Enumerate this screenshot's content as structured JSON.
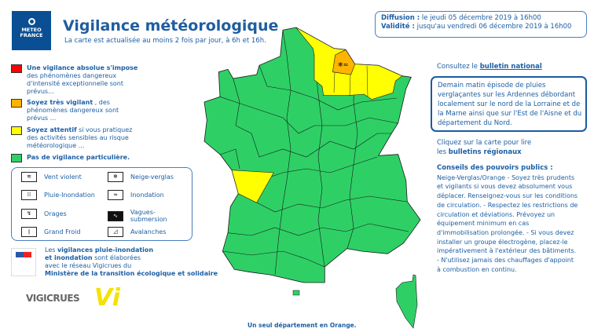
{
  "header": {
    "logo_line1": "METEO",
    "logo_line2": "FRANCE",
    "title": "Vigilance météorologique",
    "subtitle": "La carte est actualisée au moins 2 fois par jour, à 6h et 16h."
  },
  "legend": [
    {
      "color": "#ff0000",
      "bold": "Une vigilance absolue s'impose",
      "text": "des phénomènes dangereux d'intensité exceptionnelle sont prévus..."
    },
    {
      "color": "#ffb400",
      "bold": "Soyez très vigilant",
      "text": ", des phénomènes dangereux sont prévus ..."
    },
    {
      "color": "#ffff00",
      "bold": "Soyez attentif",
      "text": "si vous pratiquez des activités sensibles au risque météorologique ..."
    },
    {
      "color": "#2ed066",
      "bold": "Pas de vigilance particulière.",
      "text": ""
    }
  ],
  "risks": [
    {
      "icon": "wind-icon",
      "label": "Vent violent"
    },
    {
      "icon": "snow-ice-icon",
      "label": "Neige-verglas"
    },
    {
      "icon": "rain-flood-icon",
      "label": "Pluie-Inondation"
    },
    {
      "icon": "flood-icon",
      "label": "Inondation"
    },
    {
      "icon": "storm-icon",
      "label": "Orages"
    },
    {
      "icon": "waves-icon",
      "label": "Vagues-submersion"
    },
    {
      "icon": "thermometer-icon",
      "label": "Grand Froid"
    },
    {
      "icon": "avalanche-icon",
      "label": "Avalanches"
    }
  ],
  "vigicrues": {
    "t1": "Les ",
    "b1": "vigilances pluie-inondation",
    "t2": "et inondation",
    "t3": " sont élaborées",
    "t4": "avec le réseau Vigicrues du",
    "b2": "Ministère de la transition écologique et solidaire",
    "logo": "VIGICRUES",
    "logo2": "Vi"
  },
  "diffusion": {
    "label": "Diffusion :",
    "value": " le jeudi 05 décembre 2019 à 16h00"
  },
  "validite": {
    "label": "Validité :",
    "value": " jusqu'au vendredi 06 décembre 2019 à 16h00"
  },
  "consult": {
    "text": "Consultez le ",
    "link": "bulletin national"
  },
  "bulletin": "Demain matin épisode de pluies verglaçantes sur les Ardennes débordant localement sur le nord de la Lorraine et de la Marne ainsi que sur l'Est de l'Aisne et du département du Nord.",
  "click": {
    "line1": "Cliquez sur la carte pour lire",
    "line2a": "les ",
    "link": "bulletins régionaux"
  },
  "conseils": {
    "title": "Conseils des pouvoirs publics :",
    "text": "Neige-Verglas/Orange - Soyez très prudents et vigilants si vous devez absolument vous déplacer. Renseignez-vous sur les conditions de circulation. - Respectez les restrictions de circulation et déviations. Prévoyez un équipement minimum en cas d'immobilisation prolongée. - Si vous devez installer un groupe électrogène, placez-le impérativement à l'extérieur des bâtiments. - N'utilisez jamais des chauffages d'appoint à combustion en continu."
  },
  "map": {
    "colors": {
      "green": "#2ed066",
      "yellow": "#ffff00",
      "orange": "#ffb400"
    },
    "orange_icons": "snow-ice-icon"
  },
  "footer": "Un seul département en Orange."
}
